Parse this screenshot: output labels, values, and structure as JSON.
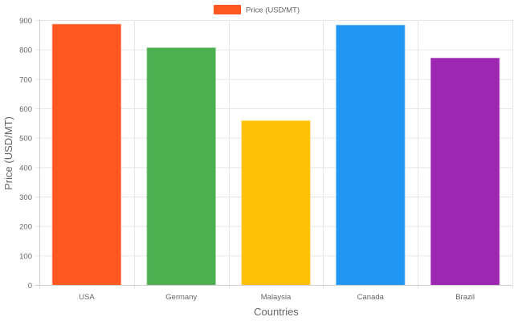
{
  "chart_data": {
    "type": "bar",
    "categories": [
      "USA",
      "Germany",
      "Malaysia",
      "Canada",
      "Brazil"
    ],
    "series": [
      {
        "name": "Price (USD/MT)",
        "values": [
          885,
          805,
          557,
          882,
          770
        ],
        "colors": [
          "#FF5722",
          "#4CAF50",
          "#FFC107",
          "#2196F3",
          "#9C27B0"
        ]
      }
    ],
    "xlabel": "Countries",
    "ylabel": "Price (USD/MT)",
    "ylim": [
      0,
      900
    ],
    "yticks": [
      0,
      100,
      200,
      300,
      400,
      500,
      600,
      700,
      800,
      900
    ],
    "grid": true,
    "legend_position": "top-center",
    "legend_color": "#FF5722",
    "text_color": "#666666",
    "grid_color": "#e6e6e6"
  }
}
